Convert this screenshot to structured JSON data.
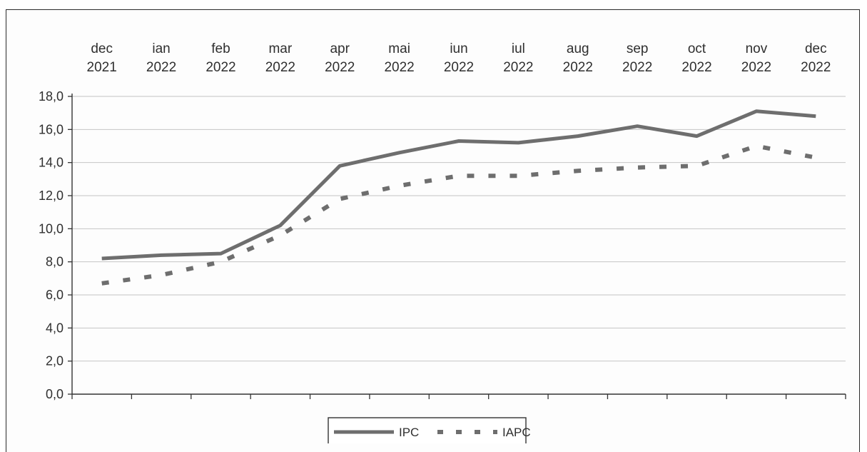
{
  "chart_data": {
    "type": "line",
    "title": "",
    "xlabel": "",
    "ylabel": "",
    "x_axis_position": "top",
    "categories": [
      [
        "dec",
        "2021"
      ],
      [
        "ian",
        "2022"
      ],
      [
        "feb",
        "2022"
      ],
      [
        "mar",
        "2022"
      ],
      [
        "apr",
        "2022"
      ],
      [
        "mai",
        "2022"
      ],
      [
        "iun",
        "2022"
      ],
      [
        "iul",
        "2022"
      ],
      [
        "aug",
        "2022"
      ],
      [
        "sep",
        "2022"
      ],
      [
        "oct",
        "2022"
      ],
      [
        "nov",
        "2022"
      ],
      [
        "dec",
        "2022"
      ]
    ],
    "y_ticks": [
      "0,0",
      "2,0",
      "4,0",
      "6,0",
      "8,0",
      "10,0",
      "12,0",
      "14,0",
      "16,0",
      "18,0"
    ],
    "ylim": [
      0,
      18
    ],
    "grid": true,
    "legend_position": "bottom-center",
    "series": [
      {
        "name": "IPC",
        "style": "solid",
        "color": "#6e6e6e",
        "values": [
          8.2,
          8.4,
          8.5,
          10.2,
          13.8,
          14.6,
          15.3,
          15.2,
          15.6,
          16.2,
          15.6,
          17.1,
          16.8
        ]
      },
      {
        "name": "IAPC",
        "style": "dashed",
        "color": "#6e6e6e",
        "values": [
          6.7,
          7.2,
          8.0,
          9.6,
          11.8,
          12.6,
          13.2,
          13.2,
          13.5,
          13.7,
          13.8,
          15.0,
          14.3
        ]
      }
    ]
  }
}
